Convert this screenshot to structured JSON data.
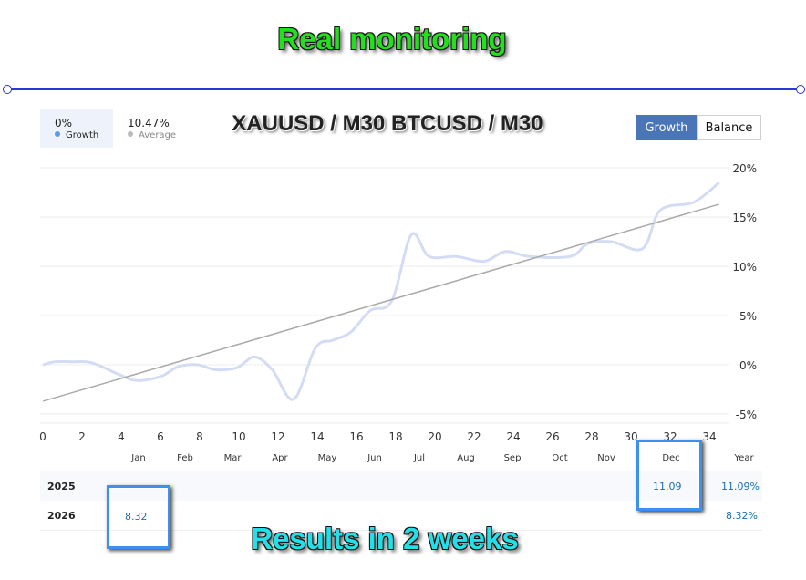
{
  "headline": "Real monitoring",
  "footer_caption": "Results in 2 weeks",
  "chart_title": "XAUUSD / M30 BTCUSD / M30",
  "legend": {
    "growth_value": "0%",
    "growth_label": "Growth",
    "average_value": "10.47%",
    "average_label": "Average"
  },
  "toggle": {
    "growth": "Growth",
    "balance": "Balance",
    "active": "Growth"
  },
  "colors": {
    "growth_line": "#d3dcf3",
    "average_line": "#aaaaaa",
    "accent": "#4a76b8",
    "value_text": "#1a6fb0"
  },
  "chart_data": {
    "type": "line",
    "xlim": [
      0,
      34
    ],
    "ylim": [
      -5,
      20
    ],
    "x_ticks": [
      "0",
      "2",
      "4",
      "6",
      "8",
      "10",
      "12",
      "14",
      "16",
      "18",
      "20",
      "22",
      "24",
      "26",
      "28",
      "30",
      "32",
      "34"
    ],
    "y_ticks": [
      "20%",
      "15%",
      "10%",
      "5%",
      "0%",
      "-5%"
    ],
    "grid": true,
    "series": [
      {
        "name": "Growth",
        "x": [
          0,
          0.6,
          1.5,
          2.5,
          3.9,
          4.8,
          6,
          6.9,
          7.9,
          8.8,
          9.9,
          10.8,
          11.7,
          12.8,
          13.9,
          14.8,
          15.7,
          16.7,
          17.8,
          18.8,
          19.7,
          21.1,
          22.5,
          23.6,
          24.8,
          26.9,
          27.8,
          29,
          30.6,
          31.5,
          33.2,
          34.5
        ],
        "y": [
          0,
          0.3,
          0.3,
          0.2,
          -1,
          -1.6,
          -1.2,
          -0.2,
          0,
          -0.5,
          -0.3,
          0.8,
          -0.5,
          -3.5,
          1.7,
          2.5,
          3.3,
          5.5,
          6.5,
          13.2,
          11,
          11,
          10.5,
          11.5,
          11,
          11,
          12.3,
          12.5,
          11.8,
          15.7,
          16.5,
          18.5
        ]
      },
      {
        "name": "Average",
        "x": [
          0,
          34.5
        ],
        "y": [
          -3.7,
          16.3
        ]
      }
    ]
  },
  "table": {
    "months": [
      "Jan",
      "Feb",
      "Mar",
      "Apr",
      "May",
      "Jun",
      "Jul",
      "Aug",
      "Sep",
      "Oct",
      "Nov",
      "Dec",
      "Year"
    ],
    "rows": [
      {
        "year": "2025",
        "dec": "11.09",
        "total": "11.09%"
      },
      {
        "year": "2026",
        "jan": "8.32",
        "total": "8.32%"
      }
    ]
  }
}
